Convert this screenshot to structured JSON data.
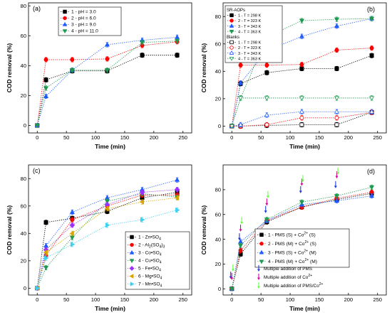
{
  "chart_data": [
    {
      "type": "scatter",
      "panel_label": "(a)",
      "xlabel": "Time (min)",
      "ylabel": "COD removal (%)",
      "xlim": [
        -15,
        265
      ],
      "ylim": [
        -5,
        82
      ],
      "xticks": [
        0,
        50,
        100,
        150,
        200,
        250
      ],
      "yticks": [
        0,
        20,
        40,
        60,
        80
      ],
      "legend_position": "top-left",
      "x": [
        0,
        15,
        60,
        120,
        180,
        240
      ],
      "series": [
        {
          "name": "1 - pH = 3.0",
          "color": "#000000",
          "marker": "square",
          "values": [
            0,
            30.5,
            36.5,
            36.5,
            47,
            47
          ]
        },
        {
          "name": "2 - pH = 6.0",
          "color": "#ff0000",
          "marker": "circle",
          "values": [
            0,
            44,
            44,
            44.5,
            53.5,
            56
          ]
        },
        {
          "name": "3 - pH = 9.0",
          "color": "#1e5bff",
          "marker": "triangle-up",
          "values": [
            0,
            19.5,
            37,
            54,
            57,
            59
          ]
        },
        {
          "name": "4 - pH = 11.0",
          "color": "#1e9a50",
          "marker": "triangle-down",
          "values": [
            0,
            25,
            37,
            37,
            55.5,
            56.5
          ]
        }
      ]
    },
    {
      "type": "scatter",
      "panel_label": "(b)",
      "xlabel": "Time (min)",
      "ylabel": "COD removal (%)",
      "xlim": [
        -15,
        265
      ],
      "ylim": [
        -5,
        90
      ],
      "xticks": [
        0,
        50,
        100,
        150,
        200,
        250
      ],
      "yticks": [
        0,
        20,
        40,
        60,
        80
      ],
      "legend_position": "top-left",
      "legend_groups": [
        "SR-AOPs",
        "Blanks"
      ],
      "x": [
        0,
        15,
        60,
        120,
        180,
        240
      ],
      "series": [
        {
          "name": "1 - T = 298 K",
          "group": "SR-AOPs",
          "color": "#000000",
          "marker": "square",
          "filled": true,
          "values": [
            0,
            31,
            39,
            42,
            42,
            51.5
          ]
        },
        {
          "name": "2 - T = 323 K",
          "group": "SR-AOPs",
          "color": "#ff0000",
          "marker": "circle",
          "filled": true,
          "values": [
            0,
            44.5,
            44.5,
            45,
            55.5,
            57
          ]
        },
        {
          "name": "3 - T = 343 K",
          "group": "SR-AOPs",
          "color": "#1e5bff",
          "marker": "triangle-up",
          "filled": true,
          "values": [
            0,
            31.5,
            55,
            65.5,
            73,
            78.5
          ]
        },
        {
          "name": "4 - T = 363 K",
          "group": "SR-AOPs",
          "color": "#1e9a50",
          "marker": "triangle-down",
          "filled": true,
          "values": [
            0,
            20.5,
            65,
            77,
            78,
            78.5
          ]
        },
        {
          "name": "1 - T = 298 K",
          "group": "Blanks",
          "color": "#000000",
          "marker": "square",
          "filled": false,
          "values": [
            0,
            0,
            0.5,
            1,
            1,
            10
          ]
        },
        {
          "name": "2 - T = 323 K",
          "group": "Blanks",
          "color": "#ff0000",
          "marker": "circle",
          "filled": false,
          "values": [
            0,
            0,
            1,
            6,
            6,
            10
          ]
        },
        {
          "name": "3 - T = 343 K",
          "group": "Blanks",
          "color": "#1e5bff",
          "marker": "triangle-up",
          "filled": false,
          "values": [
            0,
            1,
            8,
            10.5,
            10.5,
            10.5
          ]
        },
        {
          "name": "4 - T = 363 K",
          "group": "Blanks",
          "color": "#1e9a50",
          "marker": "triangle-down",
          "filled": false,
          "values": [
            0,
            20.5,
            20.5,
            20.5,
            20.5,
            20.5
          ]
        }
      ]
    },
    {
      "type": "scatter",
      "panel_label": "(c)",
      "xlabel": "Time (min)",
      "ylabel": "COD removal (%)",
      "xlim": [
        -15,
        265
      ],
      "ylim": [
        -5,
        90
      ],
      "xticks": [
        0,
        50,
        100,
        150,
        200,
        250
      ],
      "yticks": [
        0,
        20,
        40,
        60,
        80
      ],
      "legend_position": "bottom-right",
      "x": [
        0,
        15,
        60,
        120,
        180,
        240
      ],
      "series": [
        {
          "name": "1 - Zn•SO4",
          "color": "#000000",
          "marker": "square",
          "values": [
            0,
            48,
            51,
            56,
            66,
            70
          ]
        },
        {
          "name": "2 - Al2(SO4)3",
          "color": "#ff0000",
          "marker": "circle",
          "values": [
            0,
            24,
            50,
            60,
            68,
            68
          ]
        },
        {
          "name": "3 - Co•SO4",
          "color": "#1e5bff",
          "marker": "triangle-up",
          "values": [
            0,
            31,
            55.5,
            66,
            72,
            79
          ]
        },
        {
          "name": "4 - Cu•SO4",
          "color": "#1e9a50",
          "marker": "triangle-down",
          "values": [
            0,
            15,
            37,
            63.5,
            69,
            66.5
          ]
        },
        {
          "name": "5 - Fe•SO4",
          "color": "#9b30ff",
          "marker": "diamond",
          "values": [
            0,
            28,
            46,
            61,
            70,
            72
          ]
        },
        {
          "name": "6 - Mg•SO4",
          "color": "#d9a400",
          "marker": "triangle-left",
          "values": [
            0,
            26,
            40,
            58,
            63,
            66
          ]
        },
        {
          "name": "7 - Mn•SO4",
          "color": "#3fd0f0",
          "marker": "triangle-right",
          "values": [
            0,
            22,
            32,
            46,
            50,
            57
          ]
        }
      ]
    },
    {
      "type": "scatter",
      "panel_label": "(d)",
      "xlabel": "Time (min)",
      "ylabel": "COD removal (%)",
      "xlim": [
        -15,
        265
      ],
      "ylim": [
        -5,
        100
      ],
      "xticks": [
        0,
        50,
        100,
        150,
        200,
        250
      ],
      "yticks": [
        0,
        20,
        40,
        60,
        80
      ],
      "legend_position": "bottom-right",
      "x": [
        0,
        15,
        60,
        120,
        180,
        240
      ],
      "series": [
        {
          "name": "1 - PMS (S) + Co2+ (S)",
          "color": "#000000",
          "marker": "square",
          "values": [
            0,
            28,
            54,
            66,
            72,
            77
          ]
        },
        {
          "name": "2 - PMS (M) + Co2+ (S)",
          "color": "#ff0000",
          "marker": "circle",
          "values": [
            0,
            31,
            55,
            66,
            73,
            78
          ]
        },
        {
          "name": "3 - PMS (S) + Co2+ (M)",
          "color": "#1e5bff",
          "marker": "triangle-up",
          "values": [
            0,
            38,
            55,
            68,
            71,
            75
          ]
        },
        {
          "name": "4 - PMS (M) + Co2+ (M)",
          "color": "#1e9a50",
          "marker": "triangle-down",
          "values": [
            0,
            35,
            56,
            70,
            75,
            82
          ]
        }
      ],
      "additions": [
        {
          "name": "Multiple addition of PMS",
          "color": "#1e3ad8",
          "points": [
            [
              0,
              11
            ],
            [
              15,
              42
            ],
            [
              60,
              64
            ],
            [
              120,
              80
            ],
            [
              180,
              84
            ]
          ]
        },
        {
          "name": "Multiple addition of Co2+",
          "color": "#e0009a",
          "points": [
            [
              0,
              10
            ],
            [
              15,
              49
            ],
            [
              60,
              70
            ],
            [
              120,
              86
            ],
            [
              180,
              92
            ]
          ]
        },
        {
          "name": "Multiple addition of PMS/Co2+",
          "color": "#66ff44",
          "points": [
            [
              0,
              17
            ],
            [
              15,
              55
            ],
            [
              60,
              76
            ],
            [
              120,
              89
            ],
            [
              180,
              95
            ]
          ]
        }
      ]
    }
  ]
}
